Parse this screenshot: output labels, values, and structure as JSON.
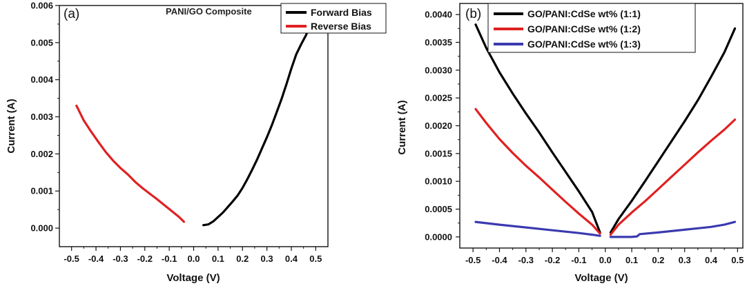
{
  "chart_data": [
    {
      "type": "line",
      "panel_label": "(a)",
      "title": "PANI/GO Composite",
      "xlabel": "Voltage (V)",
      "ylabel": "Current (A)",
      "xlim": [
        -0.55,
        0.55
      ],
      "ylim": [
        -0.0005,
        0.006
      ],
      "xticks": [
        "-0.5",
        "-0.4",
        "-0.3",
        "-0.2",
        "-0.1",
        "0.0",
        "0.1",
        "0.2",
        "0.3",
        "0.4",
        "0.5"
      ],
      "xtick_values": [
        -0.5,
        -0.4,
        -0.3,
        -0.2,
        -0.1,
        0.0,
        0.1,
        0.2,
        0.3,
        0.4,
        0.5
      ],
      "yticks": [
        "0.000",
        "0.001",
        "0.002",
        "0.003",
        "0.004",
        "0.005",
        "0.006"
      ],
      "ytick_values": [
        0,
        0.001,
        0.002,
        0.003,
        0.004,
        0.005,
        0.006
      ],
      "legend_position": "top-right",
      "grid": false,
      "series": [
        {
          "name": "Forward Bias",
          "color": "#000000",
          "x": [
            0.04,
            0.06,
            0.08,
            0.1,
            0.12,
            0.14,
            0.16,
            0.18,
            0.2,
            0.22,
            0.24,
            0.26,
            0.28,
            0.3,
            0.32,
            0.34,
            0.36,
            0.38,
            0.4,
            0.42,
            0.44,
            0.46,
            0.48
          ],
          "y": [
            8e-05,
            0.0001,
            0.00018,
            0.0003,
            0.00042,
            0.00057,
            0.00072,
            0.00088,
            0.00108,
            0.00132,
            0.00158,
            0.00185,
            0.00215,
            0.00245,
            0.00277,
            0.00312,
            0.00348,
            0.00388,
            0.0043,
            0.00468,
            0.00495,
            0.0052,
            0.0055
          ]
        },
        {
          "name": "Reverse Bias",
          "color": "#e02020",
          "x": [
            -0.48,
            -0.45,
            -0.42,
            -0.39,
            -0.36,
            -0.33,
            -0.3,
            -0.27,
            -0.24,
            -0.21,
            -0.18,
            -0.15,
            -0.12,
            -0.09,
            -0.06,
            -0.04
          ],
          "y": [
            0.0033,
            0.0029,
            0.0026,
            0.00232,
            0.00205,
            0.00182,
            0.00162,
            0.00145,
            0.00125,
            0.00108,
            0.00093,
            0.00078,
            0.00062,
            0.00046,
            0.0003,
            0.00017
          ]
        }
      ]
    },
    {
      "type": "line",
      "panel_label": "(b)",
      "title": "",
      "xlabel": "Voltage (V)",
      "ylabel": "Current (A)",
      "xlim": [
        -0.55,
        0.52
      ],
      "ylim": [
        -0.0002,
        0.0042
      ],
      "xticks": [
        "-0.5",
        "-0.4",
        "-0.3",
        "-0.2",
        "-0.1",
        "0.0",
        "0.1",
        "0.2",
        "0.3",
        "0.4",
        "0.5"
      ],
      "xtick_values": [
        -0.5,
        -0.4,
        -0.3,
        -0.2,
        -0.1,
        0.0,
        0.1,
        0.2,
        0.3,
        0.4,
        0.5
      ],
      "yticks": [
        "0.0000",
        "0.0005",
        "0.0010",
        "0.0015",
        "0.0020",
        "0.0025",
        "0.0030",
        "0.0035",
        "0.0040"
      ],
      "ytick_values": [
        0,
        0.0005,
        0.001,
        0.0015,
        0.002,
        0.0025,
        0.003,
        0.0035,
        0.004
      ],
      "legend_position": "top",
      "grid": false,
      "series": [
        {
          "name": "GO/PANI:CdSe wt% (1:1)",
          "color": "#000000",
          "x": [
            -0.49,
            -0.45,
            -0.4,
            -0.35,
            -0.3,
            -0.25,
            -0.2,
            -0.15,
            -0.1,
            -0.05,
            -0.02,
            null,
            0.02,
            0.05,
            0.1,
            0.15,
            0.2,
            0.25,
            0.3,
            0.35,
            0.4,
            0.45,
            0.49
          ],
          "y": [
            0.00382,
            0.0034,
            0.00296,
            0.00258,
            0.00222,
            0.00188,
            0.00152,
            0.00117,
            0.00082,
            0.00045,
            8e-05,
            null,
            8e-05,
            0.00032,
            0.00065,
            0.001,
            0.00136,
            0.00172,
            0.00208,
            0.00246,
            0.00288,
            0.00332,
            0.00375
          ]
        },
        {
          "name": "GO/PANI:CdSe wt% (1:2)",
          "color": "#e02020",
          "x": [
            -0.49,
            -0.45,
            -0.4,
            -0.35,
            -0.3,
            -0.25,
            -0.2,
            -0.15,
            -0.1,
            -0.05,
            -0.02,
            null,
            0.02,
            0.05,
            0.1,
            0.15,
            0.2,
            0.25,
            0.3,
            0.35,
            0.4,
            0.45,
            0.49
          ],
          "y": [
            0.0023,
            0.00205,
            0.00176,
            0.00151,
            0.00128,
            0.00107,
            0.00085,
            0.00063,
            0.00042,
            0.00022,
            6e-05,
            null,
            4e-05,
            0.00022,
            0.00044,
            0.00064,
            0.00086,
            0.00108,
            0.0013,
            0.00152,
            0.00173,
            0.00193,
            0.00211
          ]
        },
        {
          "name": "GO/PANI:CdSe wt% (1:3)",
          "color": "#3a3ab0",
          "x": [
            -0.49,
            -0.4,
            -0.3,
            -0.2,
            -0.1,
            -0.05,
            -0.02,
            null,
            0.02,
            0.05,
            0.1,
            0.12,
            0.13,
            0.2,
            0.3,
            0.4,
            0.45,
            0.49
          ],
          "y": [
            0.00027,
            0.00022,
            0.00017,
            0.00012,
            7e-05,
            4e-05,
            2e-05,
            null,
            0.0,
            0.0,
            0.0,
            1e-05,
            5e-05,
            8e-05,
            0.00013,
            0.00018,
            0.00022,
            0.00027
          ]
        }
      ]
    }
  ]
}
